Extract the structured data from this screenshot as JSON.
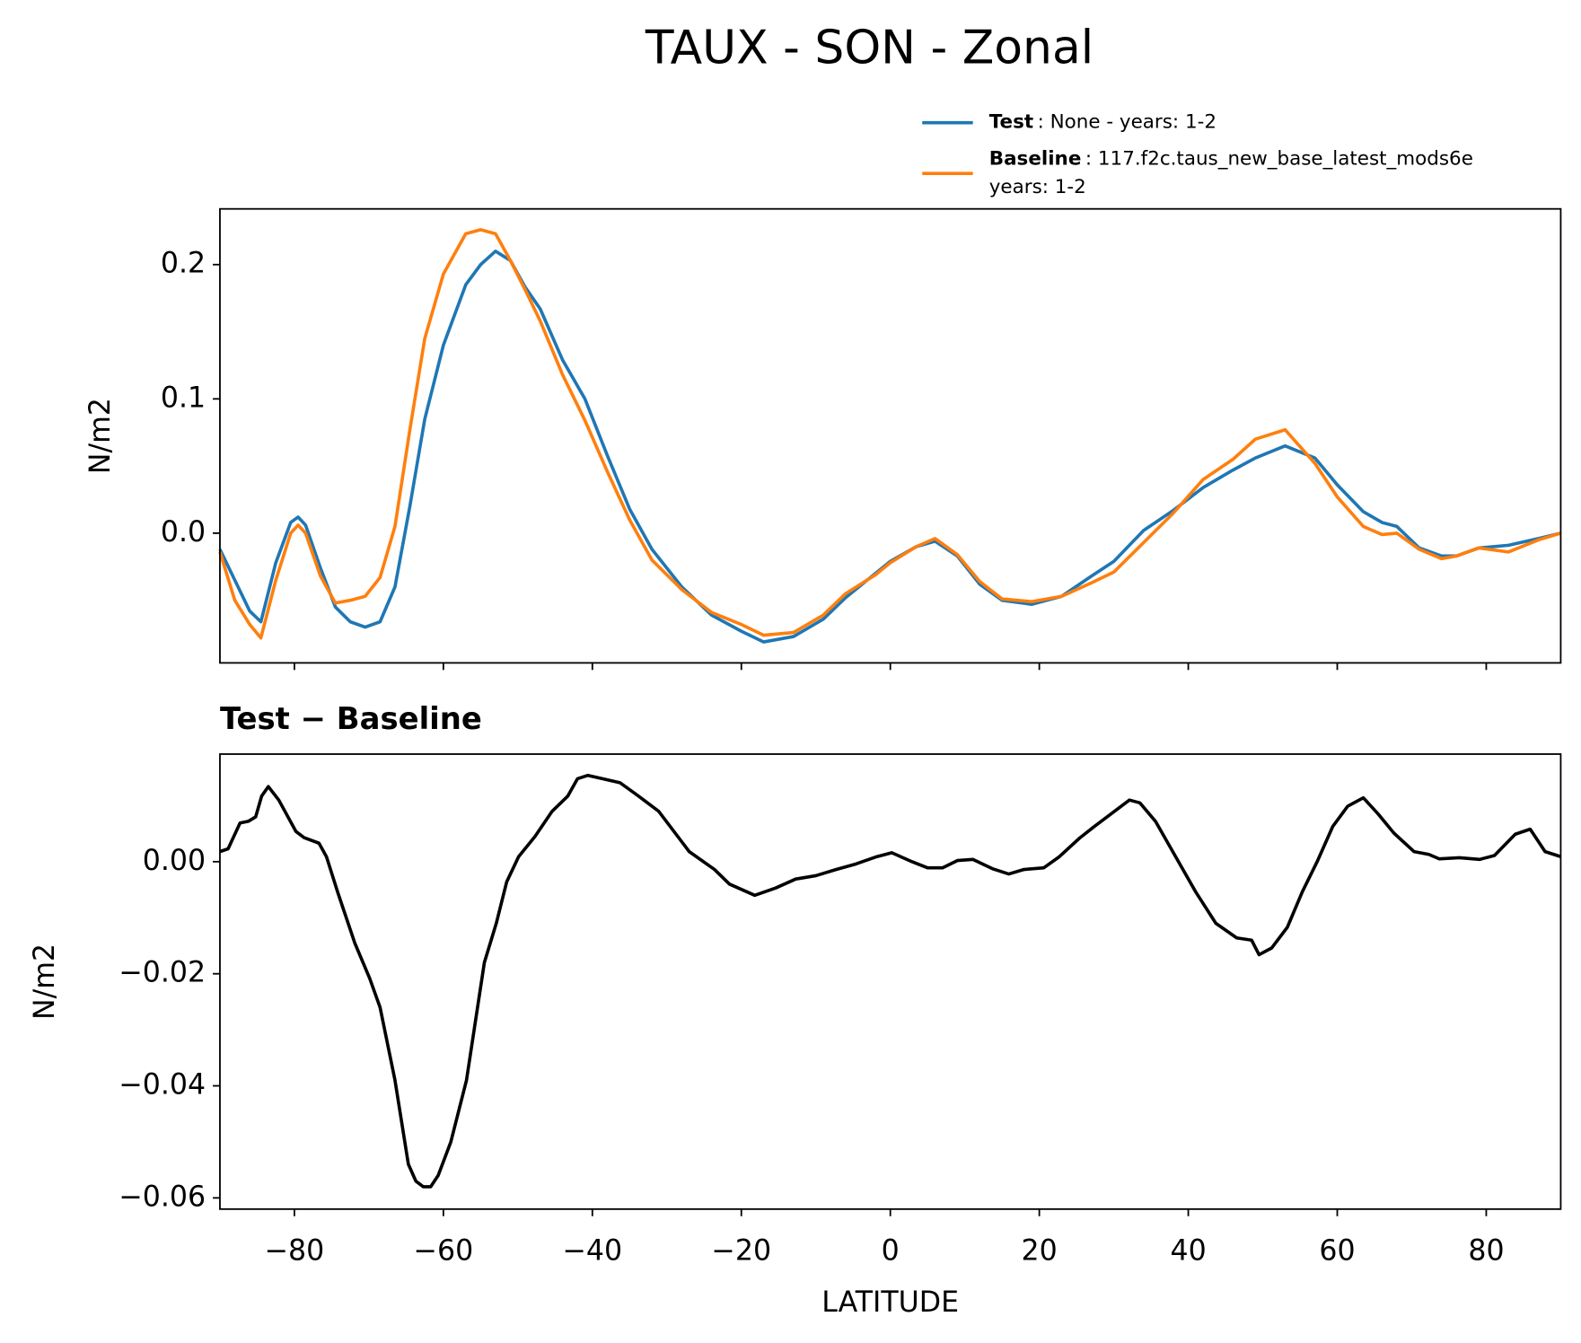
{
  "chart_data": [
    {
      "type": "line",
      "title": "TAUX - SON - Zonal",
      "ylabel": "N/m2",
      "x": [
        -90,
        -88,
        -86,
        -84.5,
        -82.5,
        -80.5,
        -79.5,
        -78.5,
        -76.5,
        -74.5,
        -72.5,
        -70.5,
        -68.5,
        -66.5,
        -64.5,
        -62.5,
        -60,
        -57,
        -55,
        -53,
        -51,
        -49,
        -47,
        -44,
        -41,
        -38,
        -35,
        -32,
        -28,
        -24,
        -20,
        -17,
        -13,
        -9,
        -6,
        -2,
        0,
        3.5,
        6,
        9,
        12,
        15,
        19,
        23,
        27,
        30,
        34,
        38,
        42,
        46,
        49,
        53,
        57,
        60,
        63.5,
        66,
        68,
        71,
        74,
        76,
        79,
        83,
        87,
        90
      ],
      "series": [
        {
          "name": "Test",
          "legend_text": [
            ": None - years: 1-2"
          ],
          "color": "#1f77b4",
          "values": [
            -0.012,
            -0.035,
            -0.058,
            -0.066,
            -0.022,
            0.008,
            0.012,
            0.006,
            -0.026,
            -0.055,
            -0.066,
            -0.07,
            -0.066,
            -0.04,
            0.02,
            0.085,
            0.14,
            0.185,
            0.2,
            0.21,
            0.203,
            0.183,
            0.167,
            0.129,
            0.1,
            0.058,
            0.018,
            -0.012,
            -0.04,
            -0.061,
            -0.073,
            -0.081,
            -0.077,
            -0.064,
            -0.048,
            -0.03,
            -0.021,
            -0.01,
            -0.006,
            -0.017,
            -0.038,
            -0.05,
            -0.053,
            -0.047,
            -0.032,
            -0.021,
            0.002,
            0.017,
            0.034,
            0.047,
            0.056,
            0.065,
            0.056,
            0.036,
            0.016,
            0.008,
            0.005,
            -0.011,
            -0.017,
            -0.017,
            -0.011,
            -0.009,
            -0.004,
            0.0
          ]
        },
        {
          "name": "Baseline",
          "legend_text": [
            ": 117.f2c.taus_new_base_latest_mods6e",
            "years: 1-2"
          ],
          "color": "#ff7f0e",
          "values": [
            -0.014,
            -0.05,
            -0.068,
            -0.078,
            -0.035,
            0.0,
            0.006,
            0.0,
            -0.032,
            -0.052,
            -0.05,
            -0.047,
            -0.033,
            0.005,
            0.077,
            0.145,
            0.193,
            0.223,
            0.226,
            0.223,
            0.203,
            0.181,
            0.158,
            0.118,
            0.084,
            0.046,
            0.01,
            -0.02,
            -0.042,
            -0.059,
            -0.068,
            -0.076,
            -0.074,
            -0.061,
            -0.045,
            -0.031,
            -0.022,
            -0.01,
            -0.004,
            -0.016,
            -0.036,
            -0.049,
            -0.051,
            -0.047,
            -0.037,
            -0.029,
            -0.007,
            0.015,
            0.04,
            0.055,
            0.07,
            0.077,
            0.052,
            0.027,
            0.005,
            -0.001,
            0.0,
            -0.012,
            -0.019,
            -0.017,
            -0.011,
            -0.014,
            -0.005,
            0.0
          ]
        }
      ],
      "xlim": [
        -90,
        90
      ],
      "xticks": [
        -80,
        -60,
        -40,
        -20,
        0,
        20,
        40,
        60,
        80
      ],
      "xtick_labels": false,
      "ylim": [
        -0.0966,
        0.2415
      ],
      "yticks": [
        {
          "value": 0,
          "label": "0.0"
        },
        0.1,
        0.2
      ]
    },
    {
      "type": "line",
      "title": "Test − Baseline",
      "ylabel": "N/m2",
      "xlabel": "LATITUDE",
      "x": [
        -90,
        -88.9,
        -87.3,
        -86.2,
        -85.2,
        -84.4,
        -83.5,
        -82.1,
        -79.8,
        -78.7,
        -76.7,
        -75.7,
        -74.2,
        -71.9,
        -69.9,
        -68.5,
        -66.5,
        -64.7,
        -63.7,
        -62.7,
        -61.7,
        -60.7,
        -59,
        -56.9,
        -54.5,
        -52.9,
        -51.5,
        -49.9,
        -47.7,
        -45.4,
        -43.3,
        -42,
        -40.6,
        -38.6,
        -36.3,
        -33.8,
        -31.1,
        -27,
        -23.6,
        -21.6,
        -18.2,
        -15.4,
        -12.7,
        -10,
        -7.3,
        -4.6,
        -1.8,
        0.2,
        2.9,
        5,
        7,
        9,
        11.1,
        13.8,
        15.9,
        17.9,
        20.6,
        22.7,
        25.4,
        27.4,
        30.1,
        32.1,
        33.5,
        35.6,
        38.3,
        41,
        43.7,
        46.5,
        48.5,
        49.5,
        51.2,
        53.3,
        55.3,
        57.3,
        59.4,
        61.4,
        63.5,
        65.5,
        67.6,
        70.3,
        72.3,
        73.7,
        76.4,
        79.1,
        81.1,
        83.9,
        85.9,
        87.9,
        90
      ],
      "series": [
        {
          "color": "#000000",
          "values": [
            0.0018,
            0.0023,
            0.0069,
            0.0072,
            0.008,
            0.0117,
            0.0134,
            0.011,
            0.0054,
            0.0043,
            0.0033,
            0.0009,
            -0.0054,
            -0.0145,
            -0.0208,
            -0.026,
            -0.039,
            -0.054,
            -0.057,
            -0.058,
            -0.058,
            -0.056,
            -0.05,
            -0.039,
            -0.018,
            -0.011,
            -0.0036,
            0.0009,
            0.0045,
            0.009,
            0.0117,
            0.0148,
            0.0154,
            0.0148,
            0.0141,
            0.0117,
            0.009,
            0.0018,
            -0.0014,
            -0.004,
            -0.006,
            -0.0047,
            -0.0031,
            -0.0025,
            -0.0014,
            -0.0004,
            0.0009,
            0.0016,
            0.0,
            -0.0011,
            -0.0011,
            0.0002,
            0.0004,
            -0.0013,
            -0.0022,
            -0.0014,
            -0.0011,
            0.0009,
            0.0042,
            0.0063,
            0.009,
            0.011,
            0.0105,
            0.0072,
            0.0009,
            -0.0054,
            -0.011,
            -0.0136,
            -0.014,
            -0.0166,
            -0.0154,
            -0.0117,
            -0.0054,
            0.0,
            0.0063,
            0.0099,
            0.0114,
            0.0085,
            0.0051,
            0.0018,
            0.0013,
            0.0005,
            0.0007,
            0.0004,
            0.0011,
            0.0049,
            0.0058,
            0.0018,
            0.0009
          ]
        }
      ],
      "xlim": [
        -90,
        90
      ],
      "xticks": [
        {
          "value": -80,
          "label": "−80"
        },
        {
          "value": -60,
          "label": "−60"
        },
        {
          "value": -40,
          "label": "−40"
        },
        {
          "value": -20,
          "label": "−20"
        },
        0,
        20,
        40,
        60,
        80
      ],
      "ylim": [
        -0.062,
        0.0192
      ],
      "yticks": [
        {
          "value": 0,
          "label": "0.00"
        },
        {
          "value": -0.02,
          "label": "−0.02"
        },
        {
          "value": -0.04,
          "label": "−0.04"
        },
        {
          "value": -0.06,
          "label": "−0.06"
        }
      ]
    }
  ]
}
